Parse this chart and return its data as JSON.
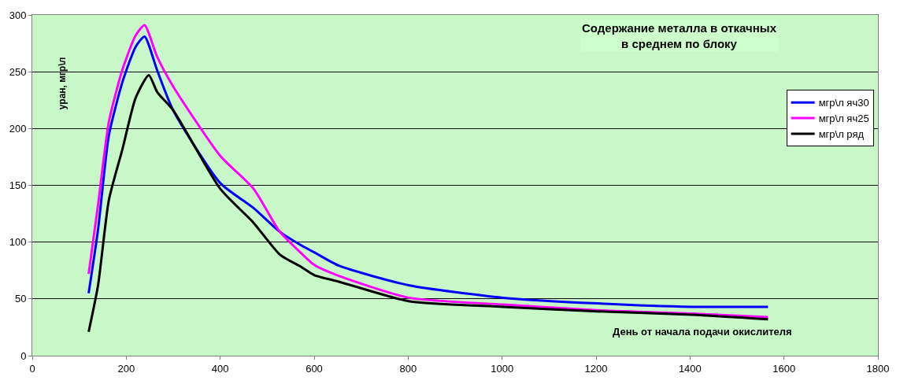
{
  "chart_data": {
    "type": "line",
    "title": "Содержание металла в откачных\nв среднем по блоку",
    "xlabel": "День от начала подачи окислителя",
    "ylabel": "уран, мгр\\л",
    "xlim": [
      0,
      1800
    ],
    "xticks": [
      0,
      200,
      400,
      600,
      800,
      1000,
      1200,
      1400,
      1600,
      1800
    ],
    "ylim": [
      0,
      300
    ],
    "yticks": [
      0,
      50,
      100,
      150,
      200,
      250,
      300
    ],
    "grid": "y",
    "legend": "top right",
    "marker": "none",
    "line_style": "solid",
    "x": [
      120,
      140,
      163,
      192,
      220,
      239,
      266,
      300,
      400,
      471,
      527,
      573,
      600,
      654,
      801,
      1002,
      1203,
      1405,
      1566
    ],
    "series": [
      {
        "name": "мгр\\л яч30",
        "color": "#0000ff",
        "values": [
          55,
          111,
          194,
          241,
          272,
          281,
          251,
          216,
          152,
          130,
          109,
          97,
          91,
          79,
          62,
          51,
          46,
          43,
          43
        ]
      },
      {
        "name": "мгр\\л яч25",
        "color": "#ff00ff",
        "values": [
          72,
          133,
          206,
          252,
          282,
          291,
          263,
          237,
          176,
          147,
          109,
          90,
          80,
          70,
          51,
          45,
          40,
          37,
          34
        ]
      },
      {
        "name": "мгр\\л ряд",
        "color": "#000000",
        "x": [
          120,
          140,
          163,
          192,
          220,
          248,
          266,
          300,
          400,
          471,
          527,
          573,
          600,
          654,
          801,
          1002,
          1203,
          1405,
          1566
        ],
        "values": [
          21,
          62,
          137,
          182,
          227,
          247,
          232,
          216,
          147,
          117,
          89,
          78,
          71,
          65,
          48,
          43,
          39,
          36,
          32
        ]
      }
    ]
  }
}
